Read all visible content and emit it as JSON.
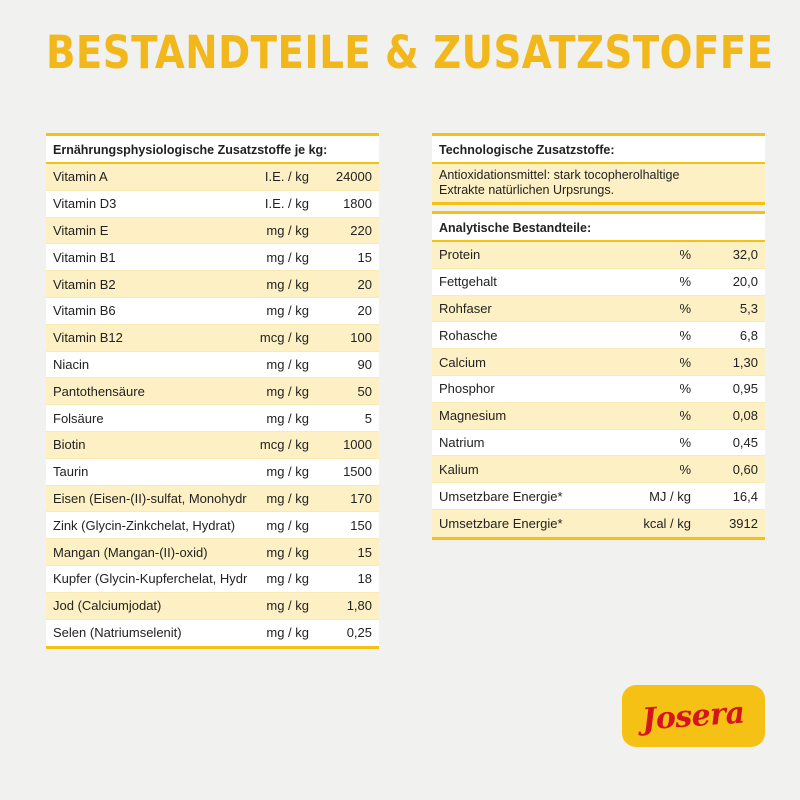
{
  "title": "BESTANDTEILE & ZUSATZSTOFFE",
  "nutritional_additives": {
    "heading": "Ernährungsphysiologische Zusatzstoffe je kg:",
    "rows": [
      {
        "name": "Vitamin A",
        "unit": "I.E. / kg",
        "value": "24000"
      },
      {
        "name": "Vitamin D3",
        "unit": "I.E. / kg",
        "value": "1800"
      },
      {
        "name": "Vitamin E",
        "unit": "mg / kg",
        "value": "220"
      },
      {
        "name": "Vitamin B1",
        "unit": "mg / kg",
        "value": "15"
      },
      {
        "name": "Vitamin B2",
        "unit": "mg / kg",
        "value": "20"
      },
      {
        "name": "Vitamin B6",
        "unit": "mg / kg",
        "value": "20"
      },
      {
        "name": "Vitamin B12",
        "unit": "mcg / kg",
        "value": "100"
      },
      {
        "name": "Niacin",
        "unit": "mg / kg",
        "value": "90"
      },
      {
        "name": "Pantothensäure",
        "unit": "mg / kg",
        "value": "50"
      },
      {
        "name": "Folsäure",
        "unit": "mg / kg",
        "value": "5"
      },
      {
        "name": "Biotin",
        "unit": "mcg / kg",
        "value": "1000"
      },
      {
        "name": "Taurin",
        "unit": "mg / kg",
        "value": "1500"
      },
      {
        "name": "Eisen (Eisen-(II)-sulfat, Monohydrat)",
        "unit": "mg / kg",
        "value": "170"
      },
      {
        "name": "Zink (Glycin-Zinkchelat, Hydrat)",
        "unit": "mg / kg",
        "value": "150"
      },
      {
        "name": "Mangan (Mangan-(II)-oxid)",
        "unit": "mg / kg",
        "value": "15"
      },
      {
        "name": "Kupfer (Glycin-Kupferchelat, Hydrat)",
        "unit": "mg / kg",
        "value": "18"
      },
      {
        "name": "Jod (Calciumjodat)",
        "unit": "mg / kg",
        "value": "1,80"
      },
      {
        "name": "Selen (Natriumselenit)",
        "unit": "mg / kg",
        "value": "0,25"
      }
    ]
  },
  "technological_additives": {
    "heading": "Technologische Zusatzstoffe:",
    "text_line1": "Antioxidationsmittel: stark tocopherolhaltige",
    "text_line2": "Extrakte natürlichen Urpsrungs."
  },
  "analytical_components": {
    "heading": "Analytische Bestandteile:",
    "rows": [
      {
        "name": "Protein",
        "unit": "%",
        "value": "32,0"
      },
      {
        "name": "Fettgehalt",
        "unit": "%",
        "value": "20,0"
      },
      {
        "name": "Rohfaser",
        "unit": "%",
        "value": "5,3"
      },
      {
        "name": "Rohasche",
        "unit": "%",
        "value": "6,8"
      },
      {
        "name": "Calcium",
        "unit": "%",
        "value": "1,30"
      },
      {
        "name": "Phosphor",
        "unit": "%",
        "value": "0,95"
      },
      {
        "name": "Magnesium",
        "unit": "%",
        "value": "0,08"
      },
      {
        "name": "Natrium",
        "unit": "%",
        "value": "0,45"
      },
      {
        "name": "Kalium",
        "unit": "%",
        "value": "0,60"
      },
      {
        "name": "Umsetzbare Energie*",
        "unit": "MJ / kg",
        "value": "16,4"
      },
      {
        "name": "Umsetzbare Energie*",
        "unit": "kcal / kg",
        "value": "3912"
      }
    ]
  },
  "logo": {
    "text": "Josera"
  },
  "colors": {
    "accent_yellow": "#f5c115",
    "title_yellow": "#f2b71b",
    "row_shade": "#fdf0c4",
    "logo_red": "#d6141e"
  }
}
